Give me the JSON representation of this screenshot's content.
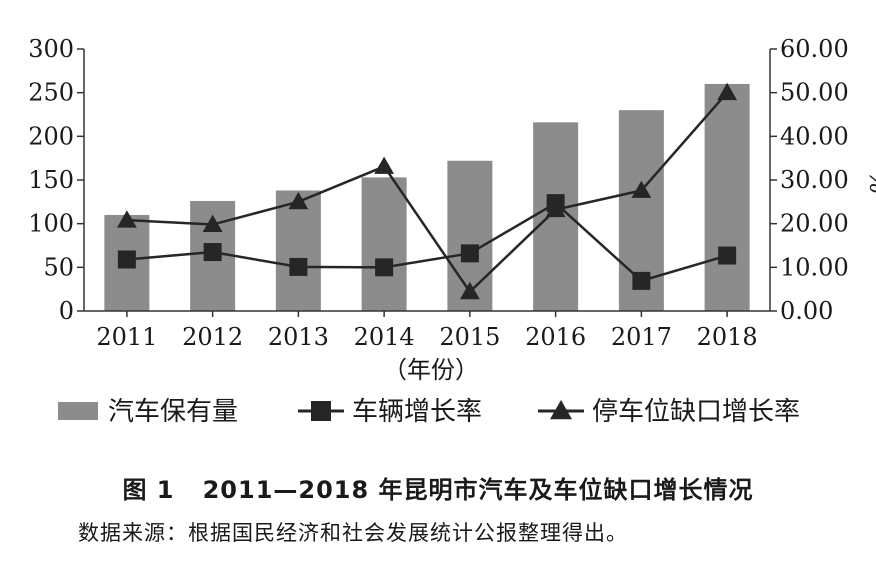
{
  "chart_data": {
    "type": "bar+line",
    "categories": [
      "2011",
      "2012",
      "2013",
      "2014",
      "2015",
      "2016",
      "2017",
      "2018"
    ],
    "xlabel": "（年份）",
    "ylabel_right": "%",
    "ylim_left": [
      0,
      300
    ],
    "ylim_right": [
      0,
      60
    ],
    "yticks_left": [
      "0",
      "50",
      "100",
      "150",
      "200",
      "250",
      "300"
    ],
    "yticks_right": [
      "0.00",
      "10.00",
      "20.00",
      "30.00",
      "40.00",
      "50.00",
      "60.00"
    ],
    "grid": false,
    "legend_position": "bottom",
    "series": [
      {
        "name": "汽车保有量",
        "kind": "bar",
        "axis": "left",
        "color": "#8c8c8c",
        "marker": "bar",
        "values": [
          110,
          126,
          138,
          153,
          172,
          216,
          230,
          260
        ]
      },
      {
        "name": "车辆增长率",
        "kind": "line",
        "axis": "right",
        "color": "#262626",
        "marker": "square",
        "values": [
          11.8,
          13.5,
          10.1,
          10.0,
          13.2,
          24.7,
          6.9,
          12.7
        ]
      },
      {
        "name": "停车位缺口增长率",
        "kind": "line",
        "axis": "right",
        "color": "#262626",
        "marker": "triangle",
        "values": [
          20.8,
          19.8,
          25.0,
          33.1,
          4.4,
          23.2,
          27.6,
          50.0
        ]
      }
    ]
  },
  "caption": {
    "label": "图 1",
    "text": "2011—2018 年昆明市汽车及车位缺口增长情况"
  },
  "source": "数据来源：根据国民经济和社会发展统计公报整理得出。"
}
